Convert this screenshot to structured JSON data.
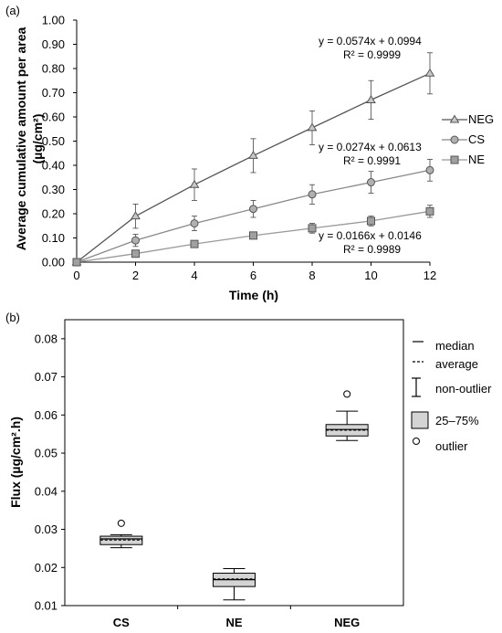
{
  "chart_data": [
    {
      "panel_label": "(a)",
      "type": "line",
      "xlabel": "Time (h)",
      "ylabel_line1": "Average cumulative amount per area",
      "ylabel_line2": "(µg/cm²)",
      "xlim": [
        0,
        12
      ],
      "ylim": [
        0,
        1.0
      ],
      "x_ticks": [
        "0",
        "2",
        "4",
        "6",
        "8",
        "10",
        "12"
      ],
      "y_ticks": [
        "0.00",
        "0.10",
        "0.20",
        "0.30",
        "0.40",
        "0.50",
        "0.60",
        "0.70",
        "0.80",
        "0.90",
        "1.00"
      ],
      "grid": false,
      "legend_position": "right",
      "x": [
        0,
        2,
        4,
        6,
        8,
        10,
        12
      ],
      "series": [
        {
          "name": "NEG",
          "marker": "triangle",
          "color": "#555555",
          "values": [
            0,
            0.19,
            0.32,
            0.44,
            0.555,
            0.67,
            0.78
          ],
          "errors": [
            0,
            0.05,
            0.065,
            0.07,
            0.07,
            0.08,
            0.085
          ],
          "equation": "y = 0.0574x + 0.0994",
          "r2": "R² = 0.9999"
        },
        {
          "name": "CS",
          "marker": "circle",
          "color": "#888888",
          "values": [
            0,
            0.09,
            0.16,
            0.22,
            0.28,
            0.33,
            0.38
          ],
          "errors": [
            0,
            0.025,
            0.03,
            0.035,
            0.04,
            0.045,
            0.045
          ],
          "equation": "y = 0.0274x + 0.0613",
          "r2": "R² = 0.9991"
        },
        {
          "name": "NE",
          "marker": "square",
          "color": "#999999",
          "values": [
            0,
            0.035,
            0.075,
            0.11,
            0.14,
            0.17,
            0.21
          ],
          "errors": [
            0,
            0.01,
            0.01,
            0.012,
            0.02,
            0.02,
            0.025
          ],
          "equation": "y = 0.0166x + 0.0146",
          "r2": "R² = 0.9989"
        }
      ]
    },
    {
      "panel_label": "(b)",
      "type": "box",
      "ylabel": "Flux (µg/cm².h)",
      "ylim": [
        0.01,
        0.085
      ],
      "y_ticks": [
        "0.01",
        "0.02",
        "0.03",
        "0.04",
        "0.05",
        "0.06",
        "0.07",
        "0.08"
      ],
      "grid": false,
      "legend_position": "right",
      "categories": [
        "CS",
        "NE",
        "NEG"
      ],
      "boxes": [
        {
          "category": "CS",
          "whisker_low": 0.0252,
          "q1": 0.026,
          "median": 0.0275,
          "average": 0.0272,
          "q3": 0.0282,
          "whisker_high": 0.0286,
          "outliers": [
            0.0316
          ]
        },
        {
          "category": "NE",
          "whisker_low": 0.0115,
          "q1": 0.015,
          "median": 0.0168,
          "average": 0.017,
          "q3": 0.0185,
          "whisker_high": 0.0197,
          "outliers": []
        },
        {
          "category": "NEG",
          "whisker_low": 0.0533,
          "q1": 0.0545,
          "median": 0.0562,
          "average": 0.056,
          "q3": 0.0575,
          "whisker_high": 0.061,
          "outliers": [
            0.0655
          ]
        }
      ],
      "legend": {
        "median": "median",
        "average": "average",
        "non_outlier": "non-outlier",
        "iqr": "25–75%",
        "outlier": "outlier"
      },
      "box_fill": "#d4d4d4"
    }
  ]
}
